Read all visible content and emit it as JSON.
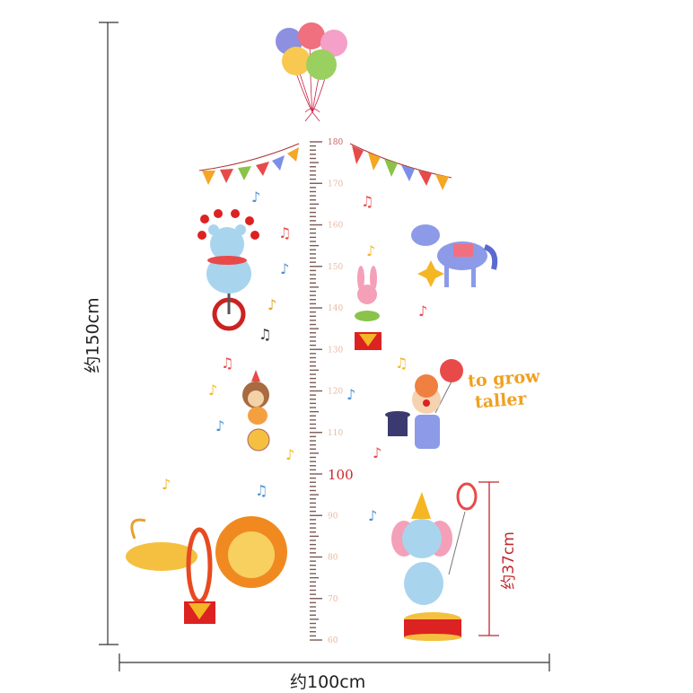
{
  "product": {
    "slogan_line1": "to grow",
    "slogan_line2": "taller"
  },
  "dimensions": {
    "height_label": "约150cm",
    "width_label": "约100cm",
    "elephant_height_label": "约37cm"
  },
  "ruler": {
    "unit": "cm",
    "min": 60,
    "max": 180,
    "labels": [
      "180",
      "170",
      "160",
      "150",
      "140",
      "130",
      "120",
      "110",
      "100",
      "90",
      "80",
      "70",
      "60"
    ],
    "highlight_label": "100"
  },
  "colors": {
    "ruler_tick": "#7a5a55",
    "ruler_label": "#e8b8a0",
    "highlight": "#d2232a",
    "dimension_line": "#333333",
    "elephant_bracket": "#c0282e",
    "slogan": "#f0a020"
  },
  "illustrations": [
    "balloon-bunch",
    "bunting-left",
    "bunting-right",
    "bear-on-unicycle",
    "horse",
    "bunny-on-pedestal",
    "monkey-on-ball",
    "clown-with-balloon",
    "lion-through-hoop",
    "elephant-on-pedestal",
    "music-notes"
  ]
}
